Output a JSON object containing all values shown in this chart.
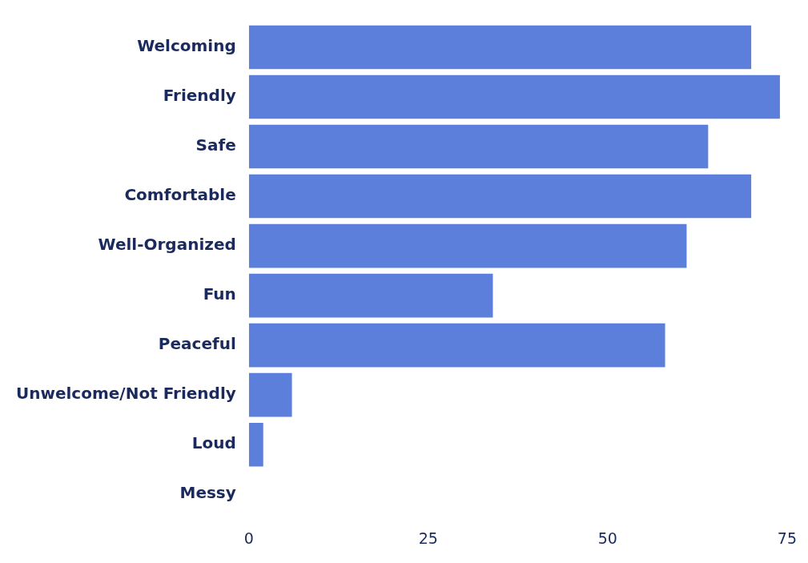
{
  "chart_data": {
    "type": "bar",
    "orientation": "horizontal",
    "categories": [
      "Welcoming",
      "Friendly",
      "Safe",
      "Comfortable",
      "Well-Organized",
      "Fun",
      "Peaceful",
      "Unwelcome/Not Friendly",
      "Loud",
      "Messy"
    ],
    "values": [
      70,
      74,
      64,
      70,
      61,
      34,
      58,
      6,
      2,
      0
    ],
    "color": "#5b7fdb",
    "xlim": [
      0,
      75
    ],
    "xticks": [
      0,
      25,
      50,
      75
    ],
    "grid": false,
    "legend": false
  }
}
